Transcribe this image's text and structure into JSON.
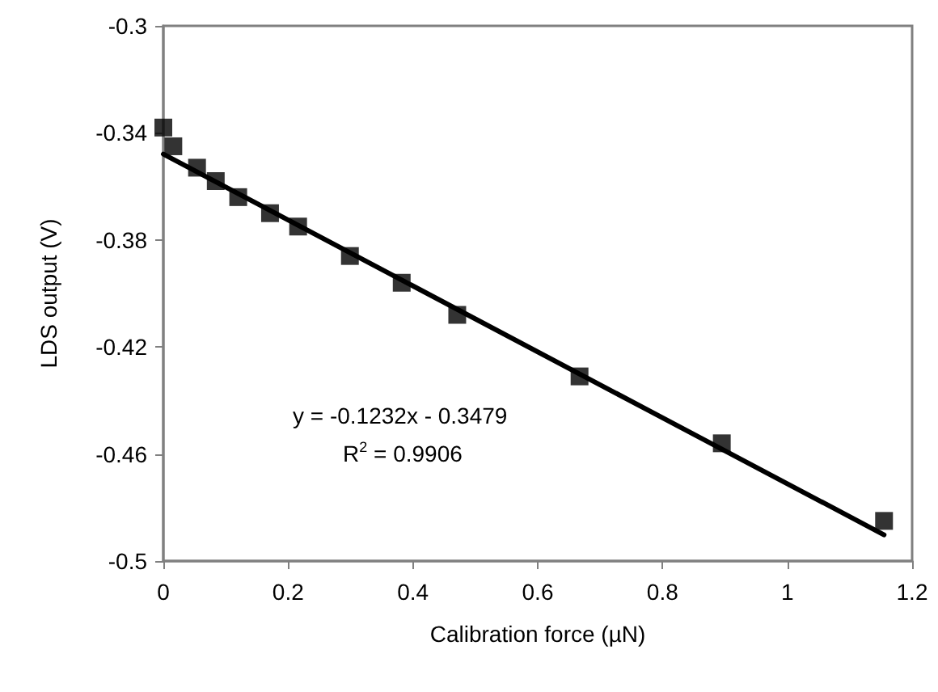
{
  "chart_data": {
    "type": "scatter",
    "xlabel": "Calibration force (µN)",
    "ylabel": "LDS output (V)",
    "xlim": [
      0,
      1.2
    ],
    "xticks": [
      0,
      0.2,
      0.4,
      0.6,
      0.8,
      1,
      1.2
    ],
    "ylim": [
      -0.5,
      -0.3
    ],
    "yticks": [
      -0.5,
      -0.46,
      -0.42,
      -0.38,
      -0.34,
      -0.3
    ],
    "grid": false,
    "marker": "square",
    "series": [
      {
        "color": "#000000",
        "x": [
          0,
          0.016,
          0.054,
          0.084,
          0.12,
          0.171,
          0.216,
          0.299,
          0.382,
          0.471,
          0.667,
          0.895,
          1.155
        ],
        "values": [
          -0.338,
          -0.345,
          -0.353,
          -0.358,
          -0.364,
          -0.37,
          -0.375,
          -0.386,
          -0.396,
          -0.408,
          -0.431,
          -0.456,
          -0.485
        ]
      },
      {
        "type": "line",
        "color": "#000000",
        "x": [
          0,
          1.155
        ],
        "values": [
          -0.3479,
          -0.4902
        ],
        "marker": "none",
        "line_style": "solid"
      }
    ],
    "annotations": [
      "y = -0.1232x - 0.3479",
      "R$^{2}$ = 0.9906"
    ]
  }
}
